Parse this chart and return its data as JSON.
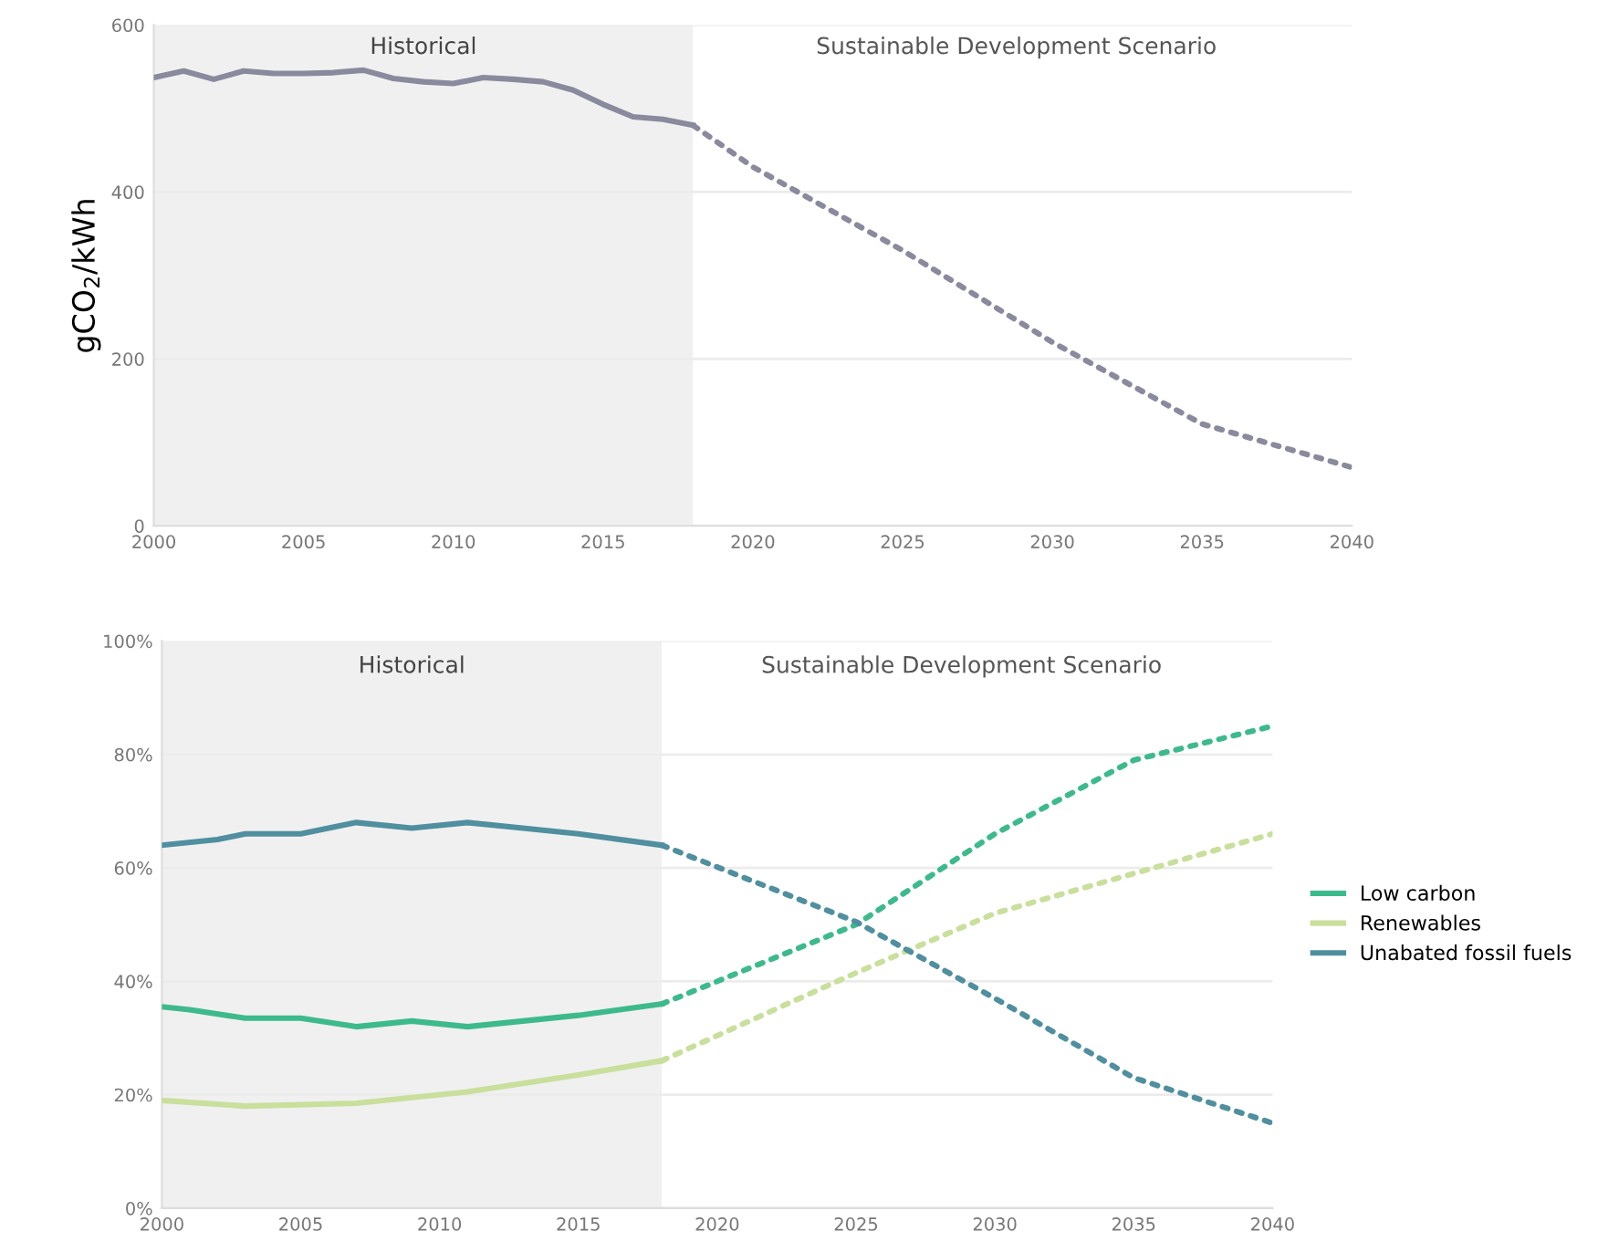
{
  "chart_data": [
    {
      "type": "line",
      "ylabel": "gCO$_{2}$/kWh",
      "xlim": [
        2000,
        2040
      ],
      "xticks": [
        2000,
        2005,
        2010,
        2015,
        2020,
        2025,
        2030,
        2035,
        2040
      ],
      "ylim": [
        0,
        600
      ],
      "yticks": [
        0,
        200,
        400,
        600
      ],
      "grid": "y",
      "legend": false,
      "bands": [
        {
          "axis": "x",
          "from": 2000,
          "to": 2018,
          "label": "Historical",
          "color": "#f0f0f0"
        }
      ],
      "annotations": [
        "Sustainable Development Scenario"
      ],
      "series": [
        {
          "color": "#8a8a9e",
          "line_style": "solid",
          "x": [
            2000,
            2001,
            2002,
            2003,
            2004,
            2005,
            2006,
            2007,
            2008,
            2009,
            2010,
            2011,
            2012,
            2013,
            2014,
            2015,
            2016,
            2017,
            2018
          ],
          "values": [
            537,
            545,
            535,
            545,
            542,
            542,
            543,
            546,
            536,
            532,
            530,
            537,
            535,
            532,
            522,
            505,
            490,
            487,
            480
          ]
        },
        {
          "color": "#8a8a9e",
          "line_style": "dotted",
          "x": [
            2018,
            2020,
            2025,
            2030,
            2035,
            2040
          ],
          "values": [
            480,
            430,
            330,
            220,
            122,
            70
          ]
        }
      ]
    },
    {
      "type": "line",
      "xlim": [
        2000,
        2040
      ],
      "xticks": [
        2000,
        2005,
        2010,
        2015,
        2020,
        2025,
        2030,
        2035,
        2040
      ],
      "ylim": [
        0,
        100
      ],
      "yticks": [
        {
          "value": 0,
          "label": "0%"
        },
        {
          "value": 20,
          "label": "20%"
        },
        {
          "value": 40,
          "label": "40%"
        },
        {
          "value": 60,
          "label": "60%"
        },
        {
          "value": 80,
          "label": "80%"
        },
        {
          "value": 100,
          "label": "100%"
        }
      ],
      "grid": "y",
      "legend": "right",
      "bands": [
        {
          "axis": "x",
          "from": 2000,
          "to": 2018,
          "label": "Historical",
          "color": "#f0f0f0"
        }
      ],
      "annotations": [
        "Sustainable Development Scenario"
      ],
      "series": [
        {
          "name": "Low carbon",
          "color": "#3dba8c",
          "line_style": "solid",
          "x": [
            2000,
            2001,
            2003,
            2005,
            2007,
            2009,
            2011,
            2013,
            2015,
            2018
          ],
          "values": [
            35.5,
            35,
            33.5,
            33.5,
            32,
            33,
            32,
            33,
            34,
            36
          ]
        },
        {
          "name": "Renewables",
          "color": "#c9df9c",
          "line_style": "solid",
          "x": [
            2000,
            2003,
            2007,
            2009,
            2011,
            2013,
            2015,
            2018
          ],
          "values": [
            19,
            18,
            18.5,
            19.5,
            20.5,
            22,
            23.5,
            26
          ]
        },
        {
          "name": "Unabated fossil fuels",
          "color": "#4f8f9f",
          "line_style": "solid",
          "x": [
            2000,
            2002,
            2003,
            2005,
            2007,
            2009,
            2011,
            2013,
            2015,
            2018
          ],
          "values": [
            64,
            65,
            66,
            66,
            68,
            67,
            68,
            67,
            66,
            64
          ]
        },
        {
          "color": "#3dba8c",
          "line_style": "dotted",
          "x": [
            2018,
            2025,
            2030,
            2035,
            2040
          ],
          "values": [
            36,
            50,
            66,
            79,
            85
          ]
        },
        {
          "color": "#c9df9c",
          "line_style": "dotted",
          "x": [
            2018,
            2025,
            2030,
            2035,
            2040
          ],
          "values": [
            26,
            41.5,
            52,
            59,
            66
          ]
        },
        {
          "color": "#4f8f9f",
          "line_style": "dotted",
          "x": [
            2018,
            2025,
            2030,
            2035,
            2040
          ],
          "values": [
            64,
            50.5,
            37,
            23,
            15
          ]
        }
      ]
    }
  ]
}
